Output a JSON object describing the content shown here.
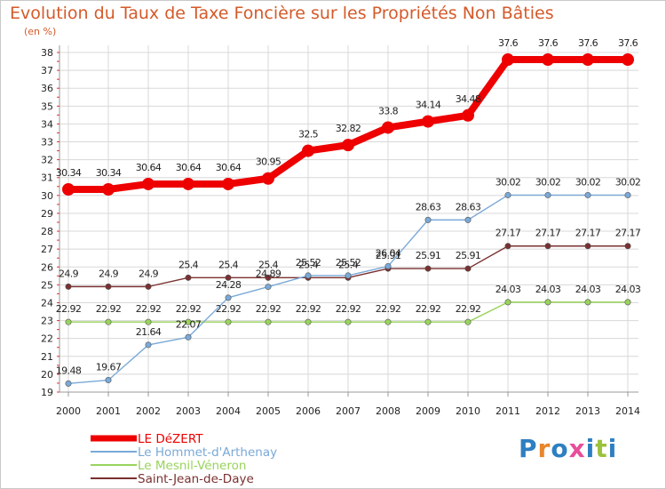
{
  "title": "Evolution du Taux de Taxe Foncière sur les Propriétés Non Bâties",
  "unit_label": "(en %)",
  "logo": {
    "text": "Proxiti",
    "letter_colors": [
      "#2e7fc1",
      "#e8862b",
      "#2e7fc1",
      "#e84e9a",
      "#2e7fc1",
      "#9bc23c",
      "#2e7fc1"
    ]
  },
  "colors": {
    "grid": "#d8d8d8",
    "axis": "#999999",
    "tick": "#e03030",
    "text": "#222222",
    "point_label": "#222222"
  },
  "chart_data": {
    "type": "line",
    "title": "Evolution du Taux de Taxe Foncière sur les Propriétés Non Bâties",
    "ylabel": "(en %)",
    "x": [
      "2000",
      "2001",
      "2002",
      "2003",
      "2004",
      "2005",
      "2006",
      "2007",
      "2008",
      "2009",
      "2010",
      "2011",
      "2012",
      "2013",
      "2014"
    ],
    "ylim": [
      19,
      38
    ],
    "yticks": [
      19,
      20,
      21,
      22,
      23,
      24,
      25,
      26,
      27,
      28,
      29,
      30,
      31,
      32,
      33,
      34,
      35,
      36,
      37,
      38
    ],
    "grid": true,
    "legend_position": "bottom-left",
    "series": [
      {
        "name": "LE DéZERT",
        "color": "#ee0000",
        "width": "thick",
        "values": [
          30.34,
          30.34,
          30.64,
          30.64,
          30.64,
          30.95,
          32.5,
          32.82,
          33.8,
          34.14,
          34.48,
          37.6,
          37.6,
          37.6,
          37.6
        ],
        "labels": [
          "30.34",
          "30.34",
          "30.64",
          "30.64",
          "30.64",
          "30.95",
          "32.5",
          "32.82",
          "33.8",
          "34.14",
          "34.48",
          "37.6",
          "37.6",
          "37.6",
          "37.6"
        ]
      },
      {
        "name": "Le Hommet-d'Arthenay",
        "color": "#7aa9d8",
        "width": "thin",
        "values": [
          19.48,
          19.67,
          21.64,
          22.07,
          24.28,
          24.89,
          25.52,
          25.52,
          26.04,
          28.63,
          28.63,
          30.02,
          30.02,
          30.02,
          30.02
        ],
        "labels": [
          "19.48",
          "19.67",
          "21.64",
          "22.07",
          "24.28",
          "24.89",
          "25.52",
          "25.52",
          "26.04",
          "28.63",
          "28.63",
          "30.02",
          "30.02",
          "30.02",
          "30.02"
        ]
      },
      {
        "name": "Le Mesnil-Véneron",
        "color": "#99d35c",
        "width": "thin",
        "values": [
          22.92,
          22.92,
          22.92,
          22.92,
          22.92,
          22.92,
          22.92,
          22.92,
          22.92,
          22.92,
          22.92,
          24.03,
          24.03,
          24.03,
          24.03
        ],
        "labels": [
          "22.92",
          "22.92",
          "22.92",
          "22.92",
          "22.92",
          "22.92",
          "22.92",
          "22.92",
          "22.92",
          "22.92",
          "22.92",
          "24.03",
          "24.03",
          "24.03",
          "24.03"
        ]
      },
      {
        "name": "Saint-Jean-de-Daye",
        "color": "#7a3030",
        "width": "thin",
        "values": [
          24.9,
          24.9,
          24.9,
          25.4,
          25.4,
          25.4,
          25.4,
          25.4,
          25.91,
          25.91,
          25.91,
          27.17,
          27.17,
          27.17,
          27.17
        ],
        "labels": [
          "24.9",
          "24.9",
          "24.9",
          "25.4",
          "25.4",
          "25.4",
          "25.4",
          "25.4",
          "25.91",
          "25.91",
          "25.91",
          "27.17",
          "27.17",
          "27.17",
          "27.17"
        ]
      }
    ]
  }
}
